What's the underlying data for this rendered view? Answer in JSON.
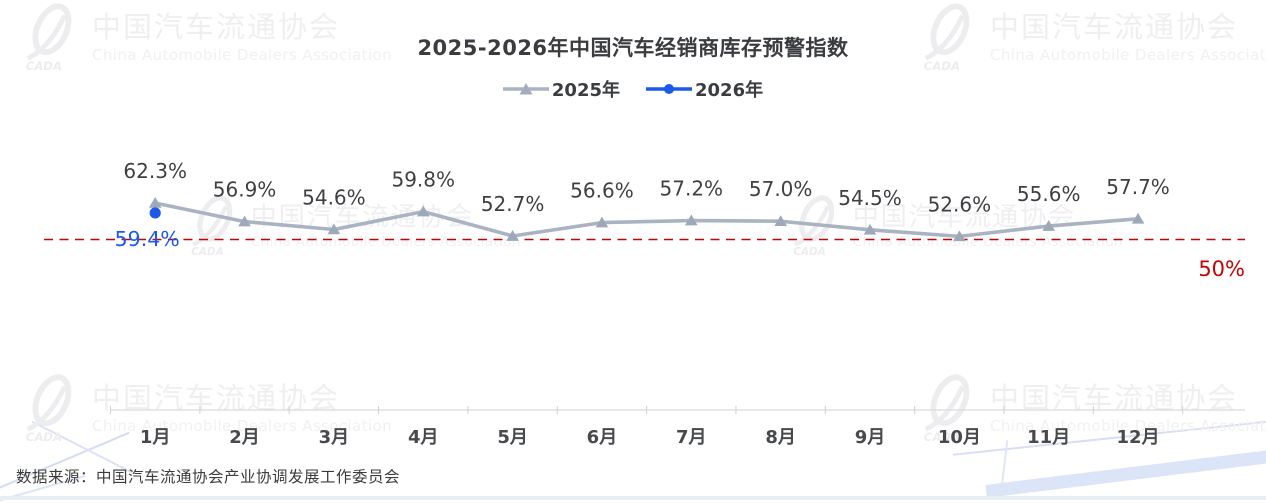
{
  "watermark": {
    "zh": "中国汽车流通协会",
    "en": "China Automobile Dealers Association",
    "logo": "CADA"
  },
  "header": {
    "title": "2025-2026年中国汽车经销商库存预警指数"
  },
  "legend": {
    "items": [
      {
        "label": "2025年",
        "color": "#a9b3c2",
        "marker": "triangle"
      },
      {
        "label": "2026年",
        "color": "#1c59e8",
        "marker": "circle"
      }
    ]
  },
  "chart_data": {
    "type": "line",
    "title": "2025-2026年中国汽车经销商库存预警指数",
    "categories": [
      "1月",
      "2月",
      "3月",
      "4月",
      "5月",
      "6月",
      "7月",
      "8月",
      "9月",
      "10月",
      "11月",
      "12月"
    ],
    "series": [
      {
        "name": "2025年",
        "marker": "triangle",
        "color": "#a9b3c2",
        "marker_color": "#9da8b8",
        "values": [
          62.3,
          56.9,
          54.6,
          59.8,
          52.7,
          56.6,
          57.2,
          57.0,
          54.5,
          52.6,
          55.6,
          57.7
        ],
        "labels": [
          "62.3%",
          "56.9%",
          "54.6%",
          "59.8%",
          "52.7%",
          "56.6%",
          "57.2%",
          "57.0%",
          "54.5%",
          "52.6%",
          "55.6%",
          "57.7%"
        ]
      },
      {
        "name": "2026年",
        "marker": "circle",
        "color": "#1c59e8",
        "values": [
          59.4
        ],
        "labels": [
          "59.4%"
        ]
      }
    ],
    "reference_line": {
      "value": 50,
      "label": "50%",
      "color": "#c00505",
      "style": "dashed"
    },
    "value_label_color": "#3e4043",
    "axis_label_color": "#47494c",
    "ylim": [
      50,
      64
    ],
    "grid": false,
    "legend_position": "top"
  },
  "footer": {
    "source": "数据来源：中国汽车流通协会产业协调发展工作委员会"
  }
}
